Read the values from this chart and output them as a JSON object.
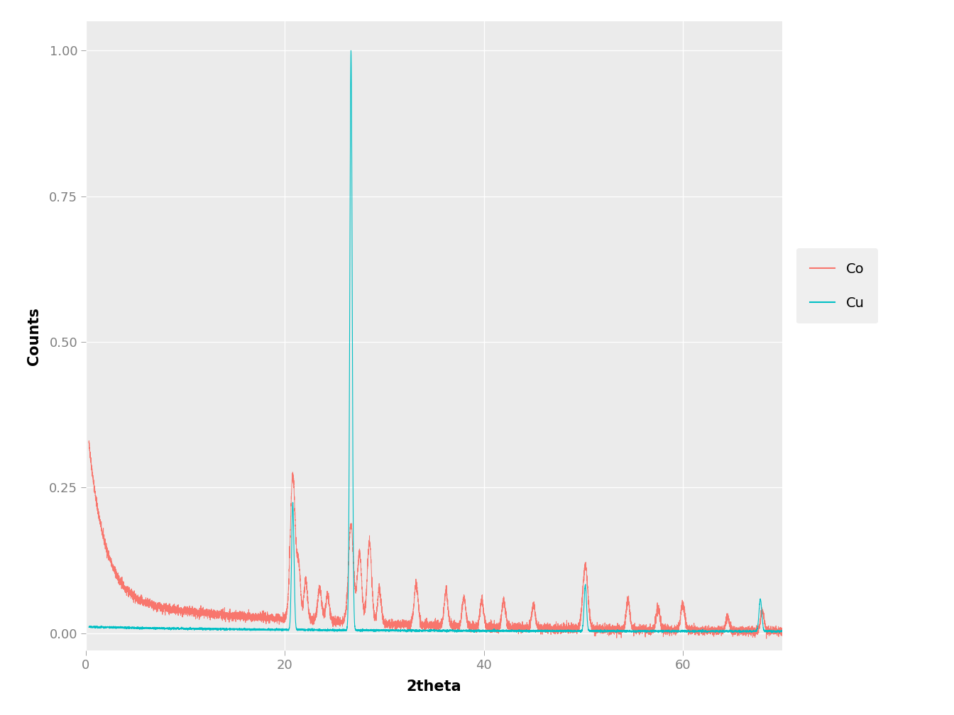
{
  "title": "",
  "xlabel": "2theta",
  "ylabel": "Counts",
  "xlim": [
    0,
    70
  ],
  "ylim": [
    -0.03,
    1.05
  ],
  "yticks": [
    0.0,
    0.25,
    0.5,
    0.75,
    1.0
  ],
  "xticks": [
    0,
    20,
    40,
    60
  ],
  "co_color": "#F8766D",
  "cu_color": "#00BFC4",
  "background_color": "#FFFFFF",
  "panel_background": "#EBEBEB",
  "grid_color": "#FFFFFF",
  "tick_label_color": "#7F7F7F",
  "axis_label_color": "#000000",
  "legend_labels": [
    "Co",
    "Cu"
  ],
  "figsize": [
    13.44,
    10.08
  ],
  "dpi": 100
}
